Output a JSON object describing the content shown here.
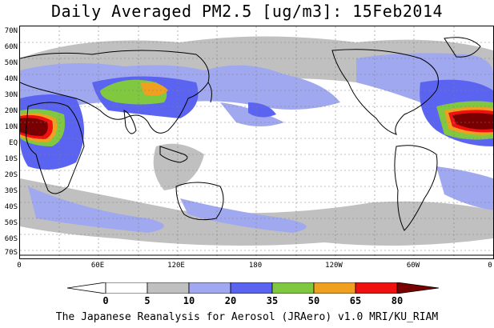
{
  "title": "Daily Averaged PM2.5 [ug/m3]: 15Feb2014",
  "footer": "The Japanese Reanalysis for Aerosol (JRAero) v1.0 MRI/KU_RIAM",
  "lat_labels": [
    "70N",
    "60N",
    "50N",
    "40N",
    "30N",
    "20N",
    "10N",
    "EQ",
    "10S",
    "20S",
    "30S",
    "40S",
    "50S",
    "60S",
    "70S"
  ],
  "lon_labels": [
    "0",
    "60E",
    "120E",
    "180",
    "120W",
    "60W",
    "0"
  ],
  "colorbar": {
    "levels": [
      "0",
      "5",
      "10",
      "20",
      "35",
      "50",
      "65",
      "80"
    ],
    "colors": [
      "#ffffff",
      "#c0c0c0",
      "#a0a8f0",
      "#5a64f0",
      "#80c840",
      "#f0a020",
      "#f01010",
      "#780000"
    ]
  },
  "colors": {
    "land_outline": "#000000",
    "grid": "#808080"
  }
}
